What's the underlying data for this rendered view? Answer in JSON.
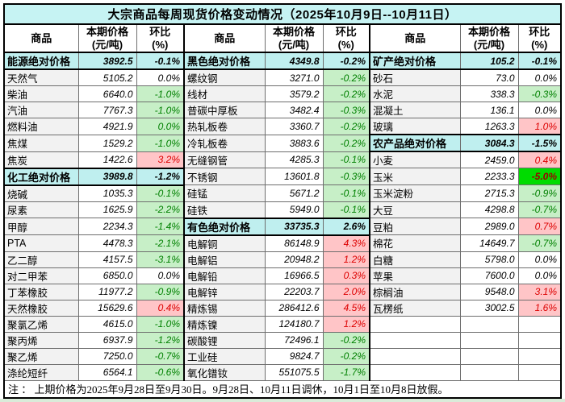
{
  "title": "大宗商品每周现货价格变动情况（2025年10月9日--10月11日）",
  "header": {
    "name": "商品",
    "price_line1": "本期价格",
    "price_line2": "(元/吨)",
    "pct_line1": "环比",
    "pct_line2": "(%)"
  },
  "note": "注 ： 上期价格为2025年9月28日至9月30日。9月28日、10月11日调休，10月1日至10月8日放假。",
  "colors": {
    "title_bg": "#c6f3f3",
    "category_bg": "#bfefef",
    "decline_bg": "#c7efc7",
    "decline_text": "#008000",
    "rise_bg": "#ffc5c7",
    "rise_text": "#dd0000",
    "big_decline_bg": "#00dc00",
    "big_decline_text": "#9c0000",
    "name_col_bg": "#f2f2f2",
    "bottom_strip": "#d9ebd9"
  },
  "rows": [
    {
      "g1": {
        "name": "能源绝对价格",
        "price": "3892.5",
        "pct": "-0.1%",
        "type": "cat"
      },
      "g2": {
        "name": "黑色绝对价格",
        "price": "4349.8",
        "pct": "-0.2%",
        "type": "cat"
      },
      "g3": {
        "name": "矿产绝对价格",
        "price": "105.2",
        "pct": "-0.1%",
        "type": "cat"
      }
    },
    {
      "g1": {
        "name": "天然气",
        "price": "5105.2",
        "pct": "0.0%",
        "type": "flat"
      },
      "g2": {
        "name": "螺纹钢",
        "price": "3271.0",
        "pct": "-0.2%",
        "type": "down"
      },
      "g3": {
        "name": "砂石",
        "price": "73.0",
        "pct": "0.0%",
        "type": "flat"
      }
    },
    {
      "g1": {
        "name": "柴油",
        "price": "6640.0",
        "pct": "-1.0%",
        "type": "down"
      },
      "g2": {
        "name": "线材",
        "price": "3579.2",
        "pct": "-0.2%",
        "type": "down"
      },
      "g3": {
        "name": "水泥",
        "price": "338.3",
        "pct": "-0.3%",
        "type": "down"
      }
    },
    {
      "g1": {
        "name": "汽油",
        "price": "7767.3",
        "pct": "-1.0%",
        "type": "down"
      },
      "g2": {
        "name": "普碳中厚板",
        "price": "3482.4",
        "pct": "-0.3%",
        "type": "down"
      },
      "g3": {
        "name": "混凝土",
        "price": "136.1",
        "pct": "0.0%",
        "type": "flat"
      }
    },
    {
      "g1": {
        "name": "燃料油",
        "price": "4921.9",
        "pct": "0.0%",
        "type": "down"
      },
      "g2": {
        "name": "热轧板卷",
        "price": "3360.7",
        "pct": "-0.2%",
        "type": "down"
      },
      "g3": {
        "name": "玻璃",
        "price": "1263.3",
        "pct": "1.0%",
        "type": "up"
      }
    },
    {
      "g1": {
        "name": "焦煤",
        "price": "1529.2",
        "pct": "-1.0%",
        "type": "down"
      },
      "g2": {
        "name": "冷轧板卷",
        "price": "3883.6",
        "pct": "-0.2%",
        "type": "down"
      },
      "g3": {
        "name": "农产品绝对价格",
        "price": "3084.3",
        "pct": "-1.5%",
        "type": "cat"
      }
    },
    {
      "g1": {
        "name": "焦炭",
        "price": "1422.6",
        "pct": "3.2%",
        "type": "up"
      },
      "g2": {
        "name": "无缝钢管",
        "price": "4285.3",
        "pct": "-0.1%",
        "type": "down"
      },
      "g3": {
        "name": "小麦",
        "price": "2459.0",
        "pct": "0.4%",
        "type": "up"
      }
    },
    {
      "g1": {
        "name": "化工绝对价格",
        "price": "3989.8",
        "pct": "-1.2%",
        "type": "cat"
      },
      "g2": {
        "name": "不锈钢",
        "price": "13601.8",
        "pct": "-0.3%",
        "type": "down"
      },
      "g3": {
        "name": "玉米",
        "price": "2233.3",
        "pct": "-5.0%",
        "type": "bigdown"
      }
    },
    {
      "g1": {
        "name": "烧碱",
        "price": "1035.3",
        "pct": "-0.1%",
        "type": "down"
      },
      "g2": {
        "name": "硅锰",
        "price": "5671.2",
        "pct": "-0.1%",
        "type": "down"
      },
      "g3": {
        "name": "玉米淀粉",
        "price": "2715.3",
        "pct": "-0.9%",
        "type": "down"
      }
    },
    {
      "g1": {
        "name": "尿素",
        "price": "1625.9",
        "pct": "-2.2%",
        "type": "down"
      },
      "g2": {
        "name": "硅铁",
        "price": "5949.0",
        "pct": "-0.1%",
        "type": "down"
      },
      "g3": {
        "name": "大豆",
        "price": "4298.8",
        "pct": "-0.7%",
        "type": "down"
      }
    },
    {
      "g1": {
        "name": "甲醇",
        "price": "2234.3",
        "pct": "-1.4%",
        "type": "down"
      },
      "g2": {
        "name": "有色绝对价格",
        "price": "33735.3",
        "pct": "2.6%",
        "type": "cat"
      },
      "g3": {
        "name": "豆粕",
        "price": "2989.0",
        "pct": "0.7%",
        "type": "up"
      }
    },
    {
      "g1": {
        "name": "PTA",
        "price": "4478.3",
        "pct": "-2.1%",
        "type": "down"
      },
      "g2": {
        "name": "电解铜",
        "price": "86148.9",
        "pct": "4.3%",
        "type": "up"
      },
      "g3": {
        "name": "棉花",
        "price": "14649.7",
        "pct": "-0.7%",
        "type": "down"
      }
    },
    {
      "g1": {
        "name": "乙二醇",
        "price": "4157.5",
        "pct": "-3.1%",
        "type": "down"
      },
      "g2": {
        "name": "电解铝",
        "price": "20948.2",
        "pct": "1.2%",
        "type": "up"
      },
      "g3": {
        "name": "白糖",
        "price": "5798.0",
        "pct": "0.0%",
        "type": "flat"
      }
    },
    {
      "g1": {
        "name": "对二甲苯",
        "price": "6850.0",
        "pct": "0.0%",
        "type": "flat"
      },
      "g2": {
        "name": "电解铅",
        "price": "16966.5",
        "pct": "0.3%",
        "type": "up"
      },
      "g3": {
        "name": "苹果",
        "price": "7600.0",
        "pct": "0.0%",
        "type": "flat"
      }
    },
    {
      "g1": {
        "name": "丁苯橡胶",
        "price": "11977.2",
        "pct": "-0.9%",
        "type": "down"
      },
      "g2": {
        "name": "电解锌",
        "price": "22203.7",
        "pct": "2.0%",
        "type": "up"
      },
      "g3": {
        "name": "棕榈油",
        "price": "9548.0",
        "pct": "3.1%",
        "type": "up"
      }
    },
    {
      "g1": {
        "name": "天然橡胶",
        "price": "15629.6",
        "pct": "0.4%",
        "type": "up"
      },
      "g2": {
        "name": "精炼锡",
        "price": "286412.6",
        "pct": "4.5%",
        "type": "up"
      },
      "g3": {
        "name": "瓦楞纸",
        "price": "3002.5",
        "pct": "1.6%",
        "type": "up"
      }
    },
    {
      "g1": {
        "name": "聚氯乙烯",
        "price": "4615.0",
        "pct": "-1.0%",
        "type": "down"
      },
      "g2": {
        "name": "精炼镍",
        "price": "124180.7",
        "pct": "1.2%",
        "type": "up"
      },
      "g3": {
        "name": "",
        "price": "",
        "pct": "",
        "type": "empty"
      }
    },
    {
      "g1": {
        "name": "聚丙烯",
        "price": "6937.9",
        "pct": "-1.2%",
        "type": "down"
      },
      "g2": {
        "name": "碳酸锂",
        "price": "72496.1",
        "pct": "-0.2%",
        "type": "down"
      },
      "g3": {
        "name": "",
        "price": "",
        "pct": "",
        "type": "empty"
      }
    },
    {
      "g1": {
        "name": "聚乙烯",
        "price": "7250.0",
        "pct": "-0.7%",
        "type": "down"
      },
      "g2": {
        "name": "工业硅",
        "price": "9824.7",
        "pct": "-0.2%",
        "type": "down"
      },
      "g3": {
        "name": "",
        "price": "",
        "pct": "",
        "type": "empty"
      }
    },
    {
      "g1": {
        "name": "涤纶短纤",
        "price": "6564.1",
        "pct": "-0.6%",
        "type": "down"
      },
      "g2": {
        "name": "氧化镨钕",
        "price": "551075.5",
        "pct": "-1.7%",
        "type": "down"
      },
      "g3": {
        "name": "",
        "price": "",
        "pct": "",
        "type": "empty"
      }
    }
  ]
}
